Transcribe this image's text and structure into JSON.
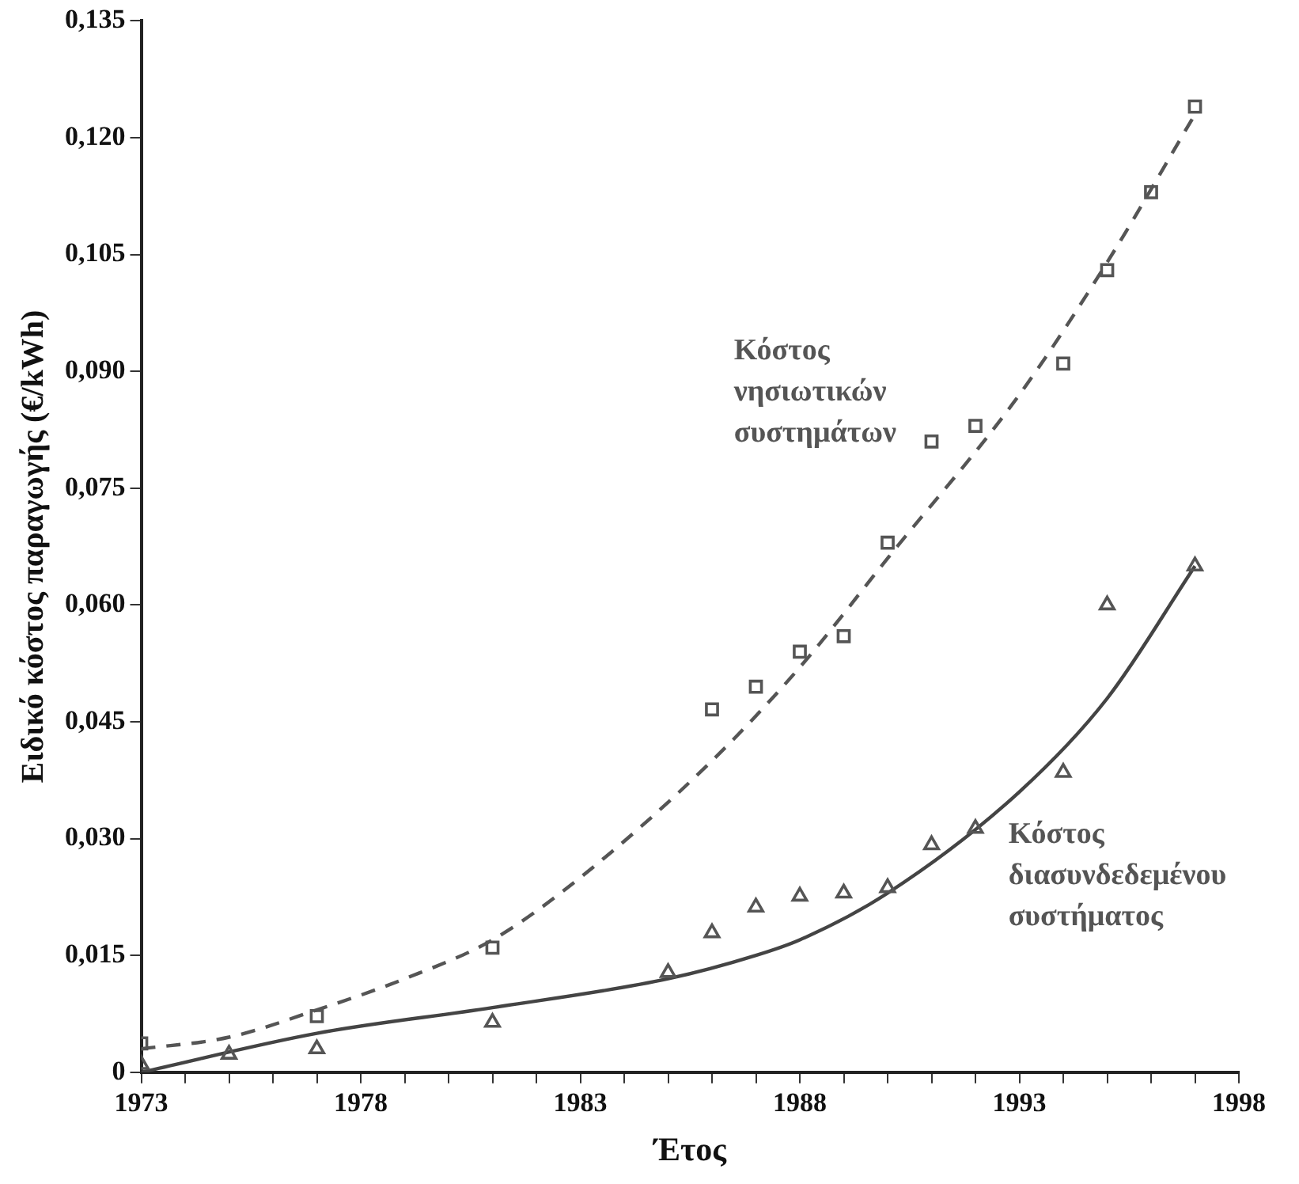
{
  "chart_data": {
    "type": "scatter",
    "xlabel": "Έτος",
    "ylabel": "Ειδικό κόστος παραγωγής (€/kWh)",
    "xlim": [
      1973,
      1998
    ],
    "xticks": [
      1973,
      {
        "value": 1974,
        "label": null
      },
      {
        "value": 1975,
        "label": null
      },
      {
        "value": 1976,
        "label": null
      },
      {
        "value": 1977,
        "label": null
      },
      1978,
      {
        "value": 1979,
        "label": null
      },
      {
        "value": 1980,
        "label": null
      },
      {
        "value": 1981,
        "label": null
      },
      {
        "value": 1982,
        "label": null
      },
      1983,
      {
        "value": 1984,
        "label": null
      },
      {
        "value": 1985,
        "label": null
      },
      {
        "value": 1986,
        "label": null
      },
      {
        "value": 1987,
        "label": null
      },
      1988,
      {
        "value": 1989,
        "label": null
      },
      {
        "value": 1990,
        "label": null
      },
      {
        "value": 1991,
        "label": null
      },
      {
        "value": 1992,
        "label": null
      },
      1993,
      {
        "value": 1994,
        "label": null
      },
      {
        "value": 1995,
        "label": null
      },
      {
        "value": 1996,
        "label": null
      },
      {
        "value": 1997,
        "label": null
      },
      1998
    ],
    "ylim": [
      0,
      0.135
    ],
    "yticks": [
      0,
      {
        "value": 0.015,
        "label": "0,015"
      },
      {
        "value": 0.03,
        "label": "0,030"
      },
      {
        "value": 0.045,
        "label": "0,045"
      },
      {
        "value": 0.06,
        "label": "0,060"
      },
      {
        "value": 0.075,
        "label": "0,075"
      },
      {
        "value": 0.09,
        "label": "0,090"
      },
      {
        "value": 0.105,
        "label": "0,105"
      },
      {
        "value": 0.12,
        "label": "0,120"
      },
      {
        "value": 0.135,
        "label": "0,135"
      }
    ],
    "grid": false,
    "legend": false,
    "series": [
      {
        "name": "Κόστος νησιωτικών συστημάτων",
        "marker": "square",
        "color": "#555555",
        "x": [
          1973,
          1977,
          1981,
          1986,
          1987,
          1988,
          1989,
          1990,
          1991,
          1992,
          1994,
          1995,
          1996,
          1997
        ],
        "values": [
          0.0037,
          0.0072,
          0.016,
          0.0466,
          0.0495,
          0.054,
          0.056,
          0.068,
          0.081,
          0.083,
          0.091,
          0.103,
          0.113,
          0.124
        ]
      },
      {
        "name": "Κόστος διασυνδεδεμένου συστήματος",
        "marker": "triangle",
        "color": "#555555",
        "x": [
          1973,
          1975,
          1977,
          1981,
          1985,
          1986,
          1987,
          1988,
          1989,
          1990,
          1991,
          1992,
          1994,
          1995,
          1997
        ],
        "values": [
          0.001,
          0.0023,
          0.003,
          0.0064,
          0.0128,
          0.0179,
          0.0212,
          0.0226,
          0.023,
          0.0237,
          0.0292,
          0.0313,
          0.0385,
          0.06,
          0.065
        ]
      },
      {
        "type": "line",
        "line_style": "dashed",
        "color": "#555555",
        "x": [
          1973,
          1975,
          1977,
          1979,
          1981,
          1983,
          1986,
          1988,
          1990,
          1993,
          1995,
          1997
        ],
        "values": [
          0.003,
          0.0045,
          0.008,
          0.012,
          0.017,
          0.025,
          0.04,
          0.052,
          0.066,
          0.087,
          0.104,
          0.123
        ]
      },
      {
        "type": "line",
        "line_style": "solid",
        "color": "#444444",
        "x": [
          1973,
          1977,
          1981,
          1985,
          1987,
          1988,
          1990,
          1993,
          1995,
          1997
        ],
        "values": [
          0,
          0.005,
          0.0083,
          0.012,
          0.015,
          0.017,
          0.023,
          0.036,
          0.048,
          0.065
        ]
      }
    ]
  }
}
